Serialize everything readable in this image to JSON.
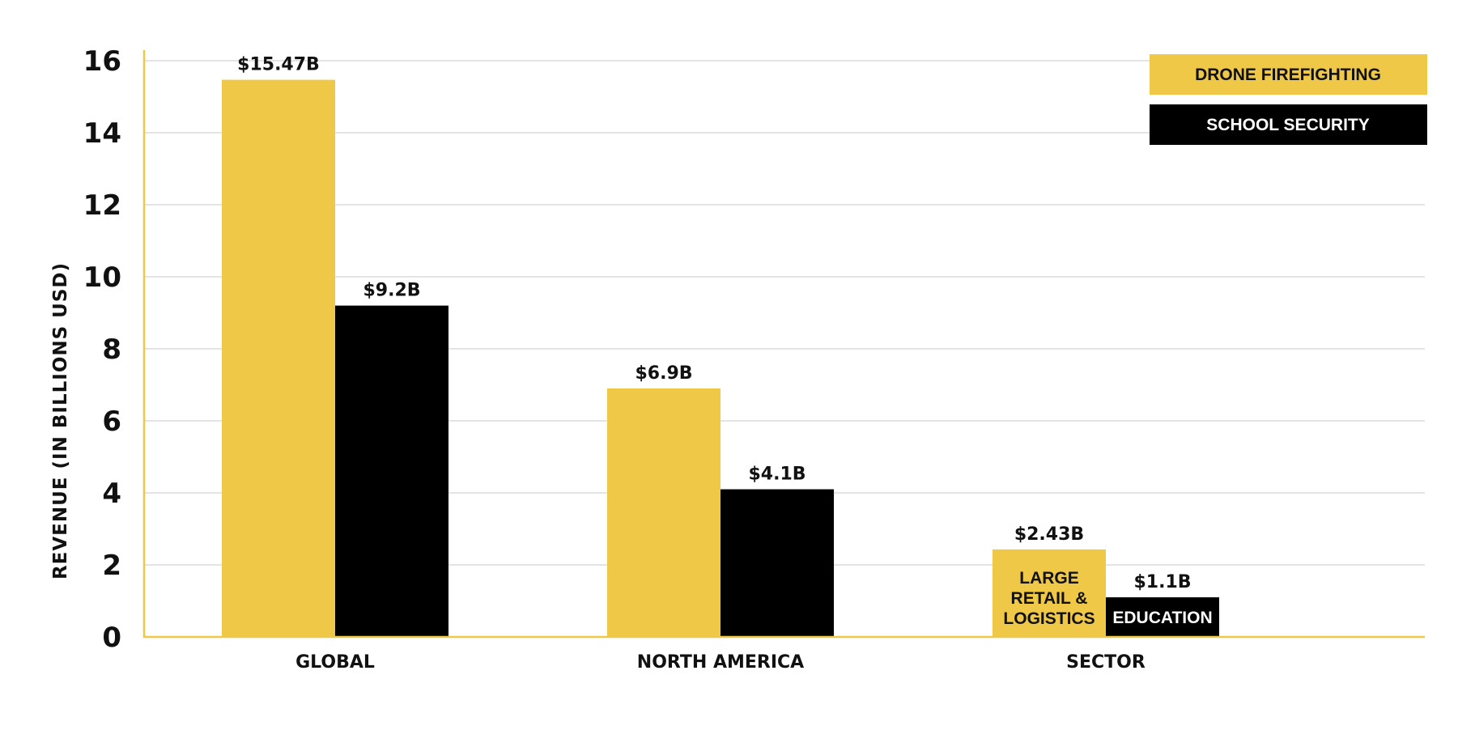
{
  "chart_data": {
    "type": "bar",
    "categories": [
      "GLOBAL",
      "NORTH AMERICA",
      "SECTOR"
    ],
    "series": [
      {
        "name": "DRONE FIREFIGHTING",
        "color": "#EEC846",
        "values": [
          15.47,
          6.9,
          2.43
        ],
        "data_labels": [
          "$15.47B",
          "$6.9B",
          "$2.43B"
        ],
        "inner_labels": [
          "",
          "",
          "LARGE\nRETAIL &\nLOGISTICS"
        ]
      },
      {
        "name": "SCHOOL SECURITY",
        "color": "#000000",
        "values": [
          9.2,
          4.1,
          1.1
        ],
        "data_labels": [
          "$9.2B",
          "$4.1B",
          "$1.1B"
        ],
        "inner_labels": [
          "",
          "",
          "EDUCATION"
        ]
      }
    ],
    "ylabel": "REVENUE (IN BILLIONS USD)",
    "xlabel": "",
    "ylim": [
      0,
      16
    ],
    "yticks": [
      0,
      2,
      4,
      6,
      8,
      10,
      12,
      14,
      16
    ],
    "grid": true,
    "legend_position": "top-right",
    "axis_color": "#EEC846",
    "grid_color": "#E4E4E4"
  }
}
